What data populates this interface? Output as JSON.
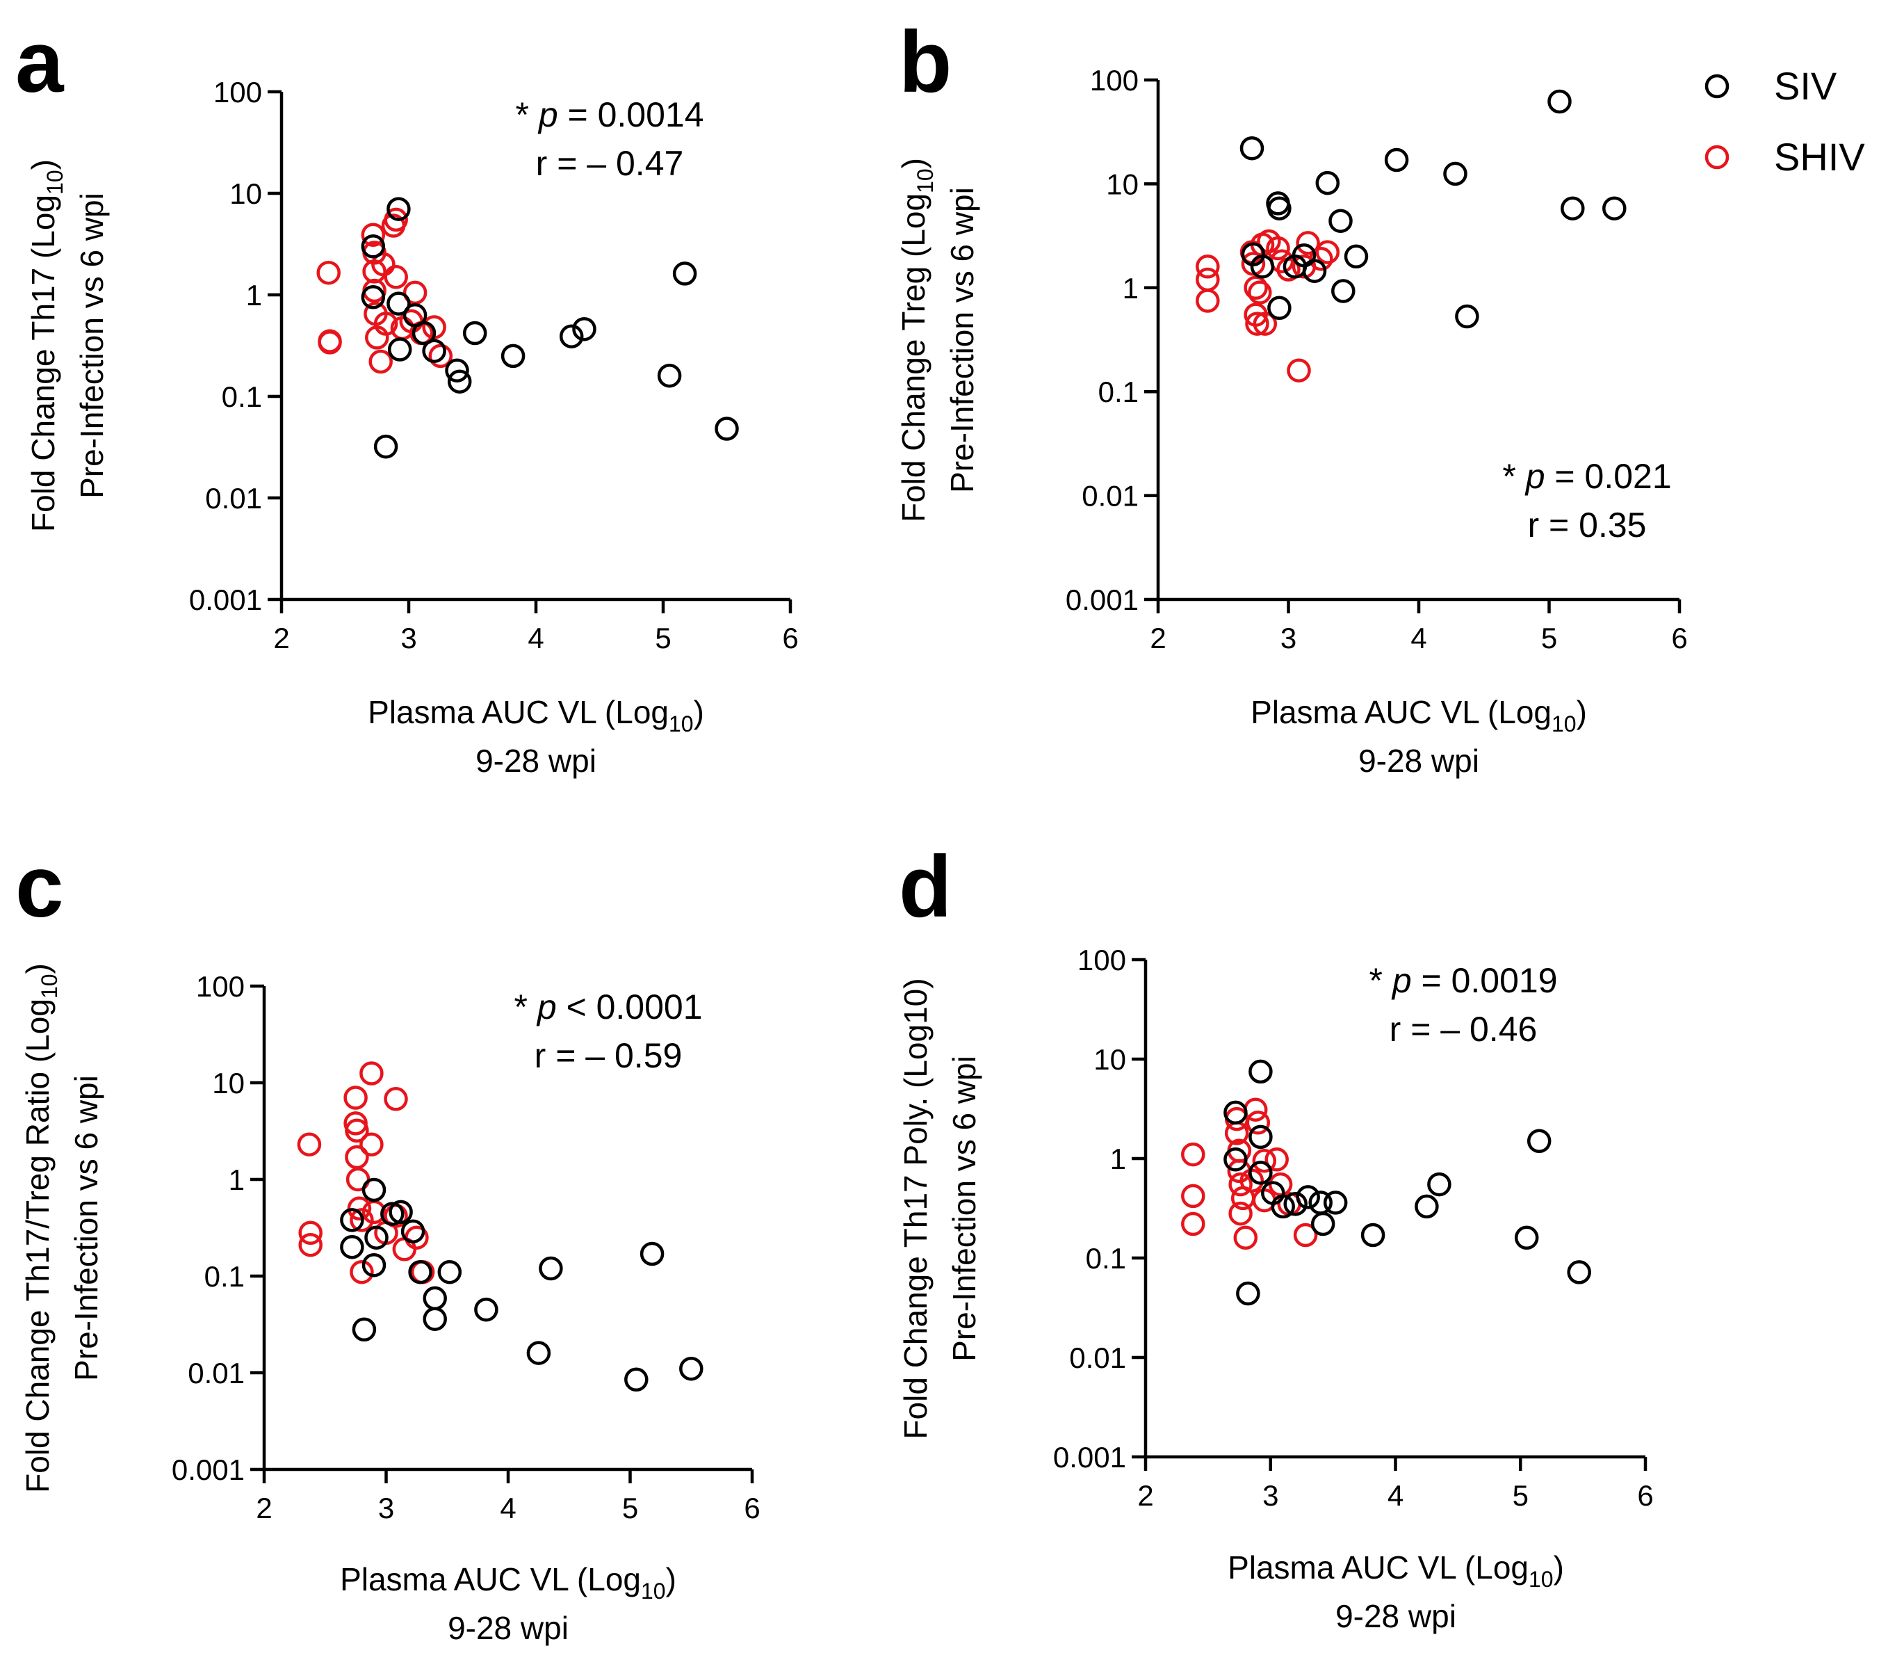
{
  "colors": {
    "SIV": "#000000",
    "SHIV": "#e8141b"
  },
  "legend": [
    {
      "label": "SIV",
      "color": "#000000"
    },
    {
      "label": "SHIV",
      "color": "#e8141b"
    }
  ],
  "chart_data": [
    {
      "type": "scatter",
      "panel": "a",
      "ylabel_line1": "Fold Change Th17 (Log",
      "ylabel_line1_sub": "10",
      "ylabel_line1_end": ")",
      "ylabel_line2": "Pre-Infection vs 6 wpi",
      "xlabel_line1": "Plasma AUC VL (Log",
      "xlabel_line1_sub": "10",
      "xlabel_line1_end": ")",
      "xlabel_line2": "9-28 wpi",
      "xlim": [
        2,
        6
      ],
      "ylim": [
        0.001,
        100
      ],
      "yscale": "log",
      "xticks": [
        "2",
        "3",
        "4",
        "5",
        "6"
      ],
      "yticks": [
        "0.001",
        "0.01",
        "0.1",
        "1",
        "10",
        "100"
      ],
      "stat_prefix": "* ",
      "stat_p_symbol": "p",
      "stat_p_rest": " = 0.0014",
      "stat_r": "r = – 0.47",
      "series": [
        {
          "name": "SHIV",
          "points": [
            [
              2.37,
              1.65
            ],
            [
              2.38,
              0.35
            ],
            [
              2.38,
              0.34
            ],
            [
              2.72,
              3.9
            ],
            [
              2.73,
              2.6
            ],
            [
              2.73,
              1.7
            ],
            [
              2.73,
              1.1
            ],
            [
              2.74,
              0.65
            ],
            [
              2.75,
              0.38
            ],
            [
              2.78,
              0.22
            ],
            [
              2.8,
              2.0
            ],
            [
              2.82,
              0.52
            ],
            [
              2.88,
              4.8
            ],
            [
              2.9,
              5.5
            ],
            [
              2.9,
              1.5
            ],
            [
              2.95,
              0.47
            ],
            [
              3.02,
              0.55
            ],
            [
              3.05,
              1.05
            ],
            [
              3.1,
              0.42
            ],
            [
              3.2,
              0.48
            ],
            [
              3.25,
              0.25
            ]
          ]
        },
        {
          "name": "SIV",
          "points": [
            [
              2.72,
              3.0
            ],
            [
              2.72,
              0.95
            ],
            [
              2.82,
              0.032
            ],
            [
              2.92,
              7.0
            ],
            [
              2.92,
              0.82
            ],
            [
              2.93,
              0.29
            ],
            [
              3.05,
              0.63
            ],
            [
              3.12,
              0.42
            ],
            [
              3.2,
              0.28
            ],
            [
              3.38,
              0.18
            ],
            [
              3.4,
              0.14
            ],
            [
              3.52,
              0.42
            ],
            [
              3.82,
              0.25
            ],
            [
              4.28,
              0.39
            ],
            [
              4.38,
              0.46
            ],
            [
              5.05,
              0.16
            ],
            [
              5.17,
              1.62
            ],
            [
              5.5,
              0.048
            ]
          ]
        }
      ]
    },
    {
      "type": "scatter",
      "panel": "b",
      "ylabel_line1": "Fold Change Treg (Log",
      "ylabel_line1_sub": "10",
      "ylabel_line1_end": ")",
      "ylabel_line2": "Pre-Infection vs 6 wpi",
      "xlabel_line1": "Plasma AUC VL (Log",
      "xlabel_line1_sub": "10",
      "xlabel_line1_end": ")",
      "xlabel_line2": "9-28 wpi",
      "xlim": [
        2,
        6
      ],
      "ylim": [
        0.001,
        100
      ],
      "yscale": "log",
      "xticks": [
        "2",
        "3",
        "4",
        "5",
        "6"
      ],
      "yticks": [
        "0.001",
        "0.01",
        "0.1",
        "1",
        "10",
        "100"
      ],
      "stat_prefix": "* ",
      "stat_p_symbol": "p",
      "stat_p_rest": " = 0.021",
      "stat_r": "r = 0.35",
      "series": [
        {
          "name": "SHIV",
          "points": [
            [
              2.38,
              1.6
            ],
            [
              2.38,
              1.2
            ],
            [
              2.38,
              0.75
            ],
            [
              2.72,
              2.2
            ],
            [
              2.73,
              1.7
            ],
            [
              2.75,
              1.0
            ],
            [
              2.75,
              0.55
            ],
            [
              2.76,
              0.45
            ],
            [
              2.78,
              0.9
            ],
            [
              2.8,
              2.6
            ],
            [
              2.82,
              0.45
            ],
            [
              2.85,
              2.8
            ],
            [
              2.92,
              2.4
            ],
            [
              2.95,
              1.8
            ],
            [
              3.0,
              1.5
            ],
            [
              3.08,
              0.16
            ],
            [
              3.12,
              1.6
            ],
            [
              3.15,
              2.7
            ],
            [
              3.25,
              1.9
            ],
            [
              3.3,
              2.2
            ]
          ]
        },
        {
          "name": "SIV",
          "points": [
            [
              2.72,
              22
            ],
            [
              2.73,
              2.1
            ],
            [
              2.8,
              1.6
            ],
            [
              2.92,
              6.5
            ],
            [
              2.93,
              5.8
            ],
            [
              2.93,
              0.64
            ],
            [
              3.05,
              1.6
            ],
            [
              3.12,
              2.05
            ],
            [
              3.2,
              1.45
            ],
            [
              3.3,
              10.2
            ],
            [
              3.4,
              4.4
            ],
            [
              3.42,
              0.93
            ],
            [
              3.52,
              2.0
            ],
            [
              3.83,
              17
            ],
            [
              4.28,
              12.5
            ],
            [
              4.37,
              0.53
            ],
            [
              5.08,
              62
            ],
            [
              5.18,
              5.8
            ],
            [
              5.5,
              5.8
            ]
          ]
        }
      ]
    },
    {
      "type": "scatter",
      "panel": "c",
      "ylabel_line1": "Fold Change Th17/Treg Ratio (Log",
      "ylabel_line1_sub": "10",
      "ylabel_line1_end": ")",
      "ylabel_line2": "Pre-Infection vs 6 wpi",
      "xlabel_line1": "Plasma AUC VL (Log",
      "xlabel_line1_sub": "10",
      "xlabel_line1_end": ")",
      "xlabel_line2": "9-28 wpi",
      "xlim": [
        2,
        6
      ],
      "ylim": [
        0.001,
        100
      ],
      "yscale": "log",
      "xticks": [
        "2",
        "3",
        "4",
        "5",
        "6"
      ],
      "yticks": [
        "0.001",
        "0.01",
        "0.1",
        "1",
        "10",
        "100"
      ],
      "stat_prefix": "* ",
      "stat_p_symbol": "p",
      "stat_p_rest": " < 0.0001",
      "stat_r": "r = – 0.59",
      "series": [
        {
          "name": "SHIV",
          "points": [
            [
              2.37,
              2.3
            ],
            [
              2.38,
              0.28
            ],
            [
              2.38,
              0.21
            ],
            [
              2.75,
              7.0
            ],
            [
              2.75,
              3.8
            ],
            [
              2.76,
              3.2
            ],
            [
              2.76,
              1.7
            ],
            [
              2.77,
              1.0
            ],
            [
              2.78,
              0.5
            ],
            [
              2.8,
              0.38
            ],
            [
              2.8,
              0.11
            ],
            [
              2.88,
              12.5
            ],
            [
              2.88,
              2.3
            ],
            [
              3.08,
              6.8
            ],
            [
              3.08,
              0.42
            ],
            [
              3.15,
              0.19
            ],
            [
              3.25,
              0.25
            ],
            [
              3.3,
              0.11
            ],
            [
              2.9,
              0.46
            ],
            [
              3.0,
              0.28
            ]
          ]
        },
        {
          "name": "SIV",
          "points": [
            [
              2.72,
              0.38
            ],
            [
              2.72,
              0.2
            ],
            [
              2.82,
              0.028
            ],
            [
              2.9,
              0.78
            ],
            [
              2.9,
              0.13
            ],
            [
              2.92,
              0.25
            ],
            [
              3.05,
              0.44
            ],
            [
              3.12,
              0.46
            ],
            [
              3.22,
              0.29
            ],
            [
              3.28,
              0.11
            ],
            [
              3.4,
              0.059
            ],
            [
              3.4,
              0.036
            ],
            [
              3.52,
              0.11
            ],
            [
              3.82,
              0.045
            ],
            [
              4.25,
              0.016
            ],
            [
              4.35,
              0.12
            ],
            [
              5.05,
              0.0085
            ],
            [
              5.18,
              0.17
            ],
            [
              5.5,
              0.011
            ]
          ]
        }
      ]
    },
    {
      "type": "scatter",
      "panel": "d",
      "ylabel_line1": "Fold Change Th17 Poly. (Log10)",
      "ylabel_line1_sub": "",
      "ylabel_line1_end": "",
      "ylabel_line2": "Pre-Infection vs 6 wpi",
      "xlabel_line1": "Plasma AUC VL (Log",
      "xlabel_line1_sub": "10",
      "xlabel_line1_end": ")",
      "xlabel_line2": "9-28 wpi",
      "xlim": [
        2,
        6
      ],
      "ylim": [
        0.001,
        100
      ],
      "yscale": "log",
      "xticks": [
        "2",
        "3",
        "4",
        "5",
        "6"
      ],
      "yticks": [
        "0.001",
        "0.01",
        "0.1",
        "1",
        "10",
        "100"
      ],
      "stat_prefix": "* ",
      "stat_p_symbol": "p",
      "stat_p_rest": " = 0.0019",
      "stat_r": "r = – 0.46",
      "series": [
        {
          "name": "SHIV",
          "points": [
            [
              2.38,
              1.1
            ],
            [
              2.38,
              0.42
            ],
            [
              2.38,
              0.22
            ],
            [
              2.73,
              2.5
            ],
            [
              2.73,
              1.8
            ],
            [
              2.75,
              1.2
            ],
            [
              2.75,
              0.75
            ],
            [
              2.76,
              0.55
            ],
            [
              2.76,
              0.28
            ],
            [
              2.78,
              0.4
            ],
            [
              2.8,
              0.16
            ],
            [
              2.88,
              3.1
            ],
            [
              2.9,
              2.3
            ],
            [
              2.95,
              0.38
            ],
            [
              2.95,
              0.95
            ],
            [
              3.05,
              0.98
            ],
            [
              3.08,
              0.55
            ],
            [
              3.15,
              0.35
            ],
            [
              3.28,
              0.17
            ],
            [
              2.85,
              0.6
            ]
          ]
        },
        {
          "name": "SIV",
          "points": [
            [
              2.72,
              2.9
            ],
            [
              2.72,
              0.98
            ],
            [
              2.82,
              0.044
            ],
            [
              2.92,
              7.5
            ],
            [
              2.92,
              1.65
            ],
            [
              2.92,
              0.72
            ],
            [
              3.02,
              0.45
            ],
            [
              3.1,
              0.33
            ],
            [
              3.2,
              0.35
            ],
            [
              3.3,
              0.41
            ],
            [
              3.4,
              0.36
            ],
            [
              3.42,
              0.22
            ],
            [
              3.52,
              0.36
            ],
            [
              3.82,
              0.17
            ],
            [
              4.25,
              0.33
            ],
            [
              4.35,
              0.55
            ],
            [
              5.05,
              0.16
            ],
            [
              5.15,
              1.5
            ],
            [
              5.47,
              0.072
            ]
          ]
        }
      ]
    }
  ]
}
